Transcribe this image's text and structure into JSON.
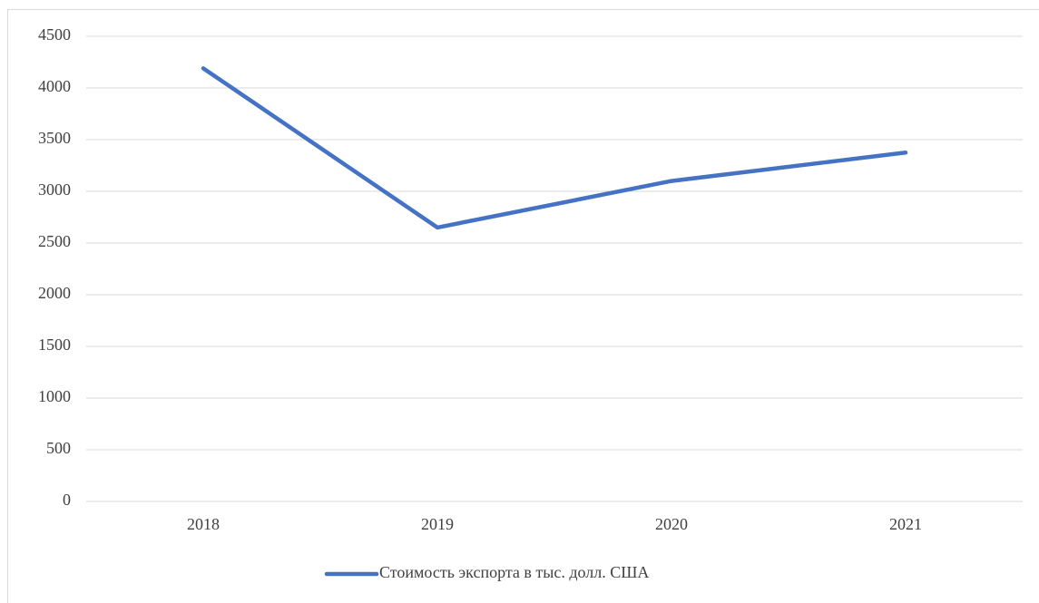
{
  "chart_data": {
    "type": "line",
    "categories": [
      "2018",
      "2019",
      "2020",
      "2021"
    ],
    "series": [
      {
        "name": "Стоимость экспорта в тыс. долл. США",
        "color": "#4472c4",
        "values": [
          4190,
          2650,
          3100,
          3375
        ]
      }
    ],
    "ylim": [
      0,
      4500
    ],
    "yticks": [
      0,
      500,
      1000,
      1500,
      2000,
      2500,
      3000,
      3500,
      4000,
      4500
    ],
    "grid": true,
    "legend": "bottom"
  }
}
